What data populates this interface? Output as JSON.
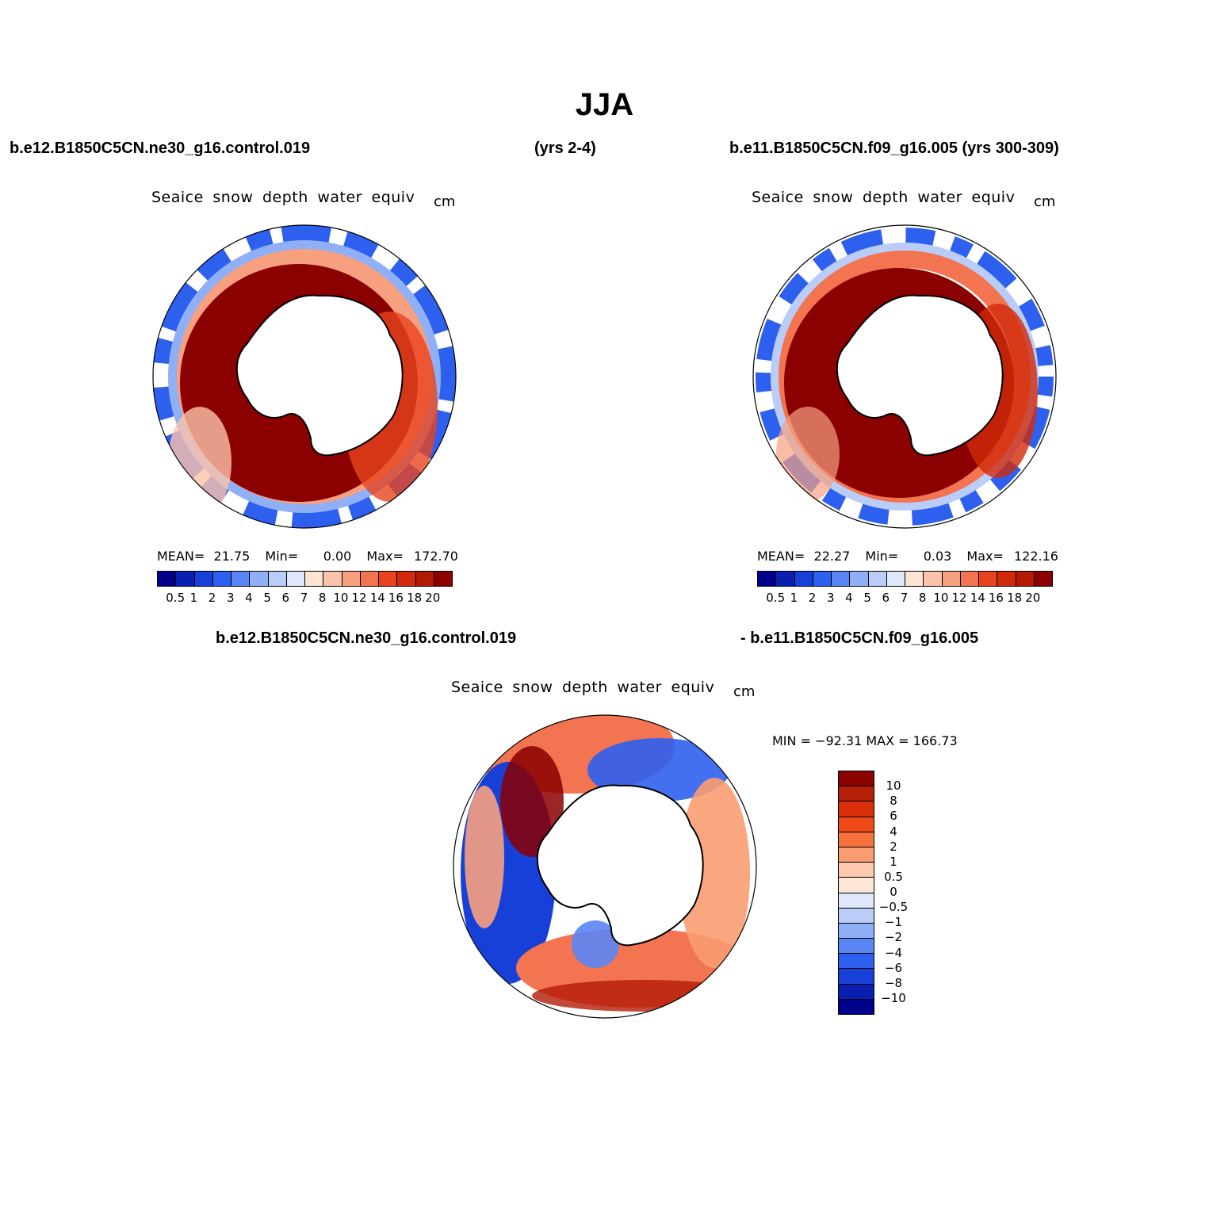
{
  "main_title": "JJA",
  "top_left_case": "b.e12.B1850C5CN.ne30_g16.control.019",
  "top_years": "(yrs 2-4)",
  "top_right_case": "b.e11.B1850C5CN.f09_g16.005 (yrs 300-309)",
  "bottom_left_case": "b.e12.B1850C5CN.ne30_g16.control.019",
  "bottom_right_case": "- b.e11.B1850C5CN.f09_g16.005",
  "panels": {
    "left": {
      "title": "Seaice snow depth water equiv",
      "units": "cm",
      "mean_label": "MEAN=",
      "mean": "21.75",
      "min_label": "Min=",
      "min": "0.00",
      "max_label": "Max=",
      "max": "172.70"
    },
    "right": {
      "title": "Seaice snow depth water equiv",
      "units": "cm",
      "mean_label": "MEAN=",
      "mean": "22.27",
      "min_label": "Min=",
      "min": "0.03",
      "max_label": "Max=",
      "max": "122.16"
    },
    "diff": {
      "title": "Seaice snow depth water equiv",
      "units": "cm",
      "minmax": "MIN = −92.31  MAX = 166.73"
    }
  },
  "abs_colorbar": {
    "colors": [
      "#00008b",
      "#0a1fb0",
      "#1640d8",
      "#2e60ef",
      "#5a86f5",
      "#8fb0f7",
      "#b9cdf8",
      "#dfe8fb",
      "#fde4d4",
      "#fbc3aa",
      "#f7a080",
      "#f27450",
      "#e8431e",
      "#d12a0a",
      "#b31a06",
      "#8b0000"
    ],
    "labels": [
      "0.5",
      "1",
      "2",
      "3",
      "4",
      "5",
      "6",
      "7",
      "8",
      "10",
      "12",
      "14",
      "16",
      "18",
      "20"
    ]
  },
  "diff_colorbar": {
    "colors": [
      "#8b0000",
      "#b51e07",
      "#d92f0b",
      "#f04a1a",
      "#f6723e",
      "#f99c71",
      "#fcc9ae",
      "#fde6d6",
      "#dfe8fb",
      "#b9cdf8",
      "#8fb0f7",
      "#5a86f5",
      "#2e60ef",
      "#1640d8",
      "#0a1fb0",
      "#00008b"
    ],
    "labels": [
      "10",
      "8",
      "6",
      "4",
      "2",
      "1",
      "0.5",
      "0",
      "−0.5",
      "−1",
      "−2",
      "−4",
      "−6",
      "−8",
      "−10"
    ]
  }
}
